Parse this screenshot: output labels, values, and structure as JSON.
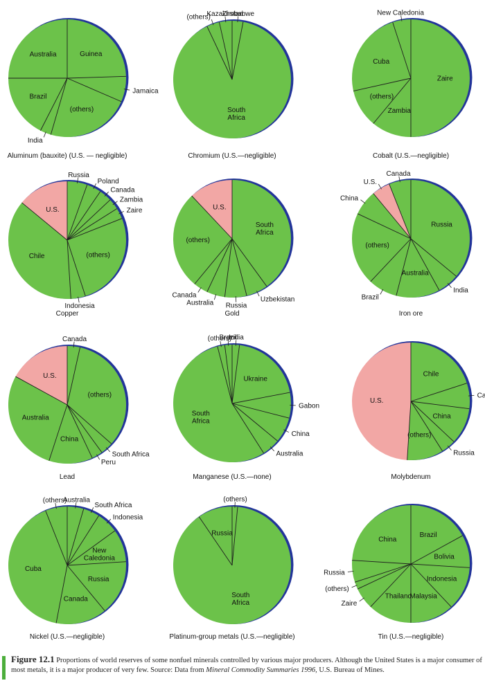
{
  "colors": {
    "green": "#6cc24a",
    "us_pink": "#f2a7a5",
    "rim_blue": "#22349a",
    "line": "#1e1e1e"
  },
  "chart_data": [
    {
      "type": "pie",
      "title": "Aluminum (bauxite) (U.S. — negligible)",
      "slices": [
        {
          "label": "Guinea",
          "value": 24.5
        },
        {
          "label": "Jamaica",
          "value": 7.0
        },
        {
          "label": "(others)",
          "value": 23.0
        },
        {
          "label": "India",
          "value": 3.0
        },
        {
          "label": "Brazil",
          "value": 17.5
        },
        {
          "label": "Australia",
          "value": 25.0
        }
      ]
    },
    {
      "type": "pie",
      "title": "Chromium (U.S.—negligible)",
      "slices": [
        {
          "label": "Zimbabwe",
          "value": 3.0
        },
        {
          "label": "South Africa",
          "value": 90.0
        },
        {
          "label": "(others)",
          "value": 3.5
        },
        {
          "label": "Kazakhstan",
          "value": 3.5
        }
      ]
    },
    {
      "type": "pie",
      "title": "Cobalt (U.S.—negligible)",
      "slices": [
        {
          "label": "Zaire",
          "value": 50.0
        },
        {
          "label": "Zambia",
          "value": 11.0
        },
        {
          "label": "(others)",
          "value": 10.5
        },
        {
          "label": "Cuba",
          "value": 23.5
        },
        {
          "label": "New Caledonia",
          "value": 5.0
        }
      ]
    },
    {
      "type": "pie",
      "title": "Copper",
      "slices": [
        {
          "label": "Russia",
          "value": 5.5
        },
        {
          "label": "Poland",
          "value": 4.0
        },
        {
          "label": "Canada",
          "value": 3.5
        },
        {
          "label": "Zambia",
          "value": 3.0
        },
        {
          "label": "Zaire",
          "value": 3.0
        },
        {
          "label": "(others)",
          "value": 26.0
        },
        {
          "label": "Indonesia",
          "value": 4.0
        },
        {
          "label": "Chile",
          "value": 37.0
        },
        {
          "label": "U.S.",
          "value": 14.0
        }
      ]
    },
    {
      "type": "pie",
      "title": "Gold",
      "slices": [
        {
          "label": "South Africa",
          "value": 40.0
        },
        {
          "label": "Uzbekistan",
          "value": 6.0
        },
        {
          "label": "Russia",
          "value": 6.0
        },
        {
          "label": "Australia",
          "value": 5.0
        },
        {
          "label": "Canada",
          "value": 4.0
        },
        {
          "label": "(others)",
          "value": 27.0
        },
        {
          "label": "U.S.",
          "value": 12.0
        }
      ]
    },
    {
      "type": "pie",
      "title": "Iron ore",
      "slices": [
        {
          "label": "Russia",
          "value": 36.0
        },
        {
          "label": "India",
          "value": 6.0
        },
        {
          "label": "Australia",
          "value": 12.0
        },
        {
          "label": "Brazil",
          "value": 8.0
        },
        {
          "label": "(others)",
          "value": 20.0
        },
        {
          "label": "China",
          "value": 7.0
        },
        {
          "label": "U.S.",
          "value": 5.0
        },
        {
          "label": "Canada",
          "value": 6.0
        }
      ]
    },
    {
      "type": "pie",
      "title": "Lead",
      "slices": [
        {
          "label": "Canada",
          "value": 3.5
        },
        {
          "label": "(others)",
          "value": 33.0
        },
        {
          "label": "South Africa",
          "value": 3.5
        },
        {
          "label": "Peru",
          "value": 3.0
        },
        {
          "label": "China",
          "value": 12.0
        },
        {
          "label": "Australia",
          "value": 28.0
        },
        {
          "label": "U.S.",
          "value": 17.0
        }
      ]
    },
    {
      "type": "pie",
      "title": "Manganese (U.S.—none)",
      "slices": [
        {
          "label": "India",
          "value": 2.0
        },
        {
          "label": "Ukraine",
          "value": 20.0
        },
        {
          "label": "Gabon",
          "value": 7.0
        },
        {
          "label": "China",
          "value": 7.0
        },
        {
          "label": "Australia",
          "value": 5.0
        },
        {
          "label": "South Africa",
          "value": 55.0
        },
        {
          "label": "(others)",
          "value": 2.0
        },
        {
          "label": "Brazil",
          "value": 2.0
        }
      ]
    },
    {
      "type": "pie",
      "title": "Molybdenum",
      "slices": [
        {
          "label": "Chile",
          "value": 20.0
        },
        {
          "label": "Canada",
          "value": 7.0
        },
        {
          "label": "China",
          "value": 10.0
        },
        {
          "label": "Russia",
          "value": 4.0
        },
        {
          "label": "(others)",
          "value": 10.0
        },
        {
          "label": "U.S.",
          "value": 49.0
        }
      ]
    },
    {
      "type": "pie",
      "title": "Nickel (U.S.—negligible)",
      "slices": [
        {
          "label": "Australia",
          "value": 4.5
        },
        {
          "label": "South Africa",
          "value": 4.5
        },
        {
          "label": "Indonesia",
          "value": 6.0
        },
        {
          "label": "New Caledonia",
          "value": 9.0
        },
        {
          "label": "Russia",
          "value": 15.0
        },
        {
          "label": "Canada",
          "value": 14.0
        },
        {
          "label": "Cuba",
          "value": 41.0
        },
        {
          "label": "(others)",
          "value": 6.0
        }
      ]
    },
    {
      "type": "pie",
      "title": "Platinum-group metals (U.S.—negligible)",
      "slices": [
        {
          "label": "(others)",
          "value": 1.5
        },
        {
          "label": "South Africa",
          "value": 89.0
        },
        {
          "label": "Russia",
          "value": 9.5
        }
      ]
    },
    {
      "type": "pie",
      "title": "Tin (U.S.—negligible)",
      "slices": [
        {
          "label": "Brazil",
          "value": 17.0
        },
        {
          "label": "Bolivia",
          "value": 9.0
        },
        {
          "label": "Indonesia",
          "value": 12.0
        },
        {
          "label": "Malaysia",
          "value": 12.0
        },
        {
          "label": "Thailand",
          "value": 12.0
        },
        {
          "label": "Zaire",
          "value": 6.0
        },
        {
          "label": "(others)",
          "value": 2.0
        },
        {
          "label": "Russia",
          "value": 6.0
        },
        {
          "label": "China",
          "value": 24.0
        }
      ]
    }
  ],
  "caption": {
    "figure_label": "Figure 12.1",
    "text_part1": "Proportions of world reserves of some nonfuel minerals controlled by various major producers. Although the United States is a major consumer of most metals, it is a major producer of very few.",
    "source_prefix": "Source: Data from",
    "source_title": "Mineral Commodity Summaries 1996,",
    "source_suffix": "U.S. Bureau of Mines."
  }
}
